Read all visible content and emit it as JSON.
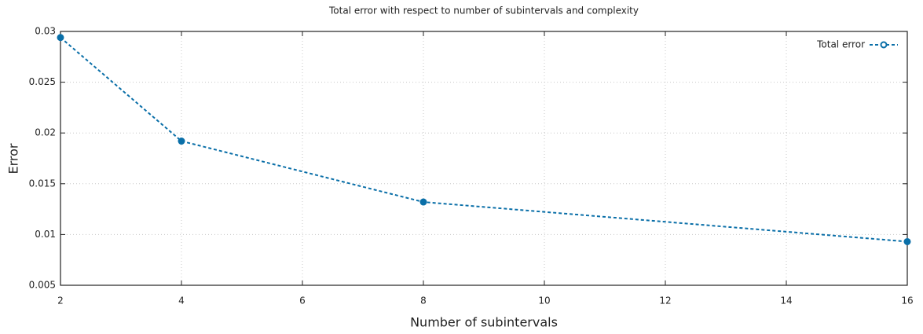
{
  "chart_data": {
    "type": "line",
    "title": "Total error with respect to number of subintervals and complexity",
    "xlabel": "Number of subintervals",
    "ylabel": "Error",
    "x": [
      2,
      4,
      8,
      16
    ],
    "series": [
      {
        "name": "Total error",
        "color": "#0a6fa8",
        "values": [
          0.0294,
          0.0192,
          0.0132,
          0.0093
        ]
      }
    ],
    "xlim": [
      2,
      16
    ],
    "xticks": [
      2,
      4,
      6,
      8,
      10,
      12,
      14,
      16
    ],
    "ylim": [
      0.005,
      0.03
    ],
    "yticks": [
      0.005,
      0.01,
      0.015,
      0.02,
      0.025,
      0.03
    ],
    "grid": true,
    "legend": "top-right"
  }
}
